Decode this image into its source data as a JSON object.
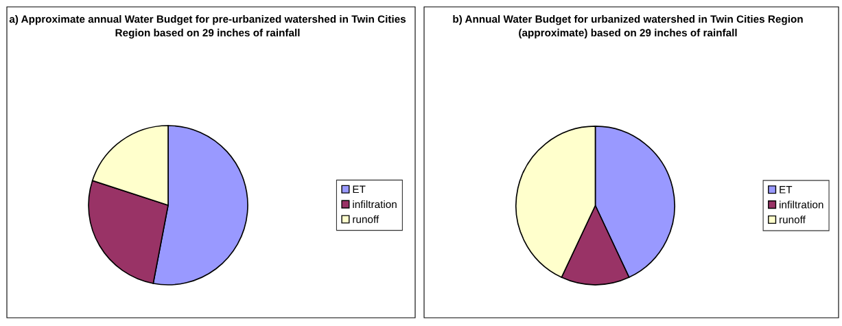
{
  "chart_data": [
    {
      "type": "pie",
      "title": "a) Approximate annual Water Budget for pre-urbanized watershed in Twin Cities Region based on 29 inches of rainfall",
      "categories": [
        "ET",
        "infiltration",
        "runoff"
      ],
      "values": [
        53,
        27,
        20
      ],
      "colors": [
        "#9999ff",
        "#993366",
        "#ffffcc"
      ],
      "legend": "right"
    },
    {
      "type": "pie",
      "title": "b) Annual Water Budget for urbanized watershed in Twin Cities Region (approximate) based on 29 inches of rainfall",
      "categories": [
        "ET",
        "infiltration",
        "runoff"
      ],
      "values": [
        43,
        14,
        43
      ],
      "colors": [
        "#9999ff",
        "#993366",
        "#ffffcc"
      ],
      "legend": "right"
    }
  ]
}
